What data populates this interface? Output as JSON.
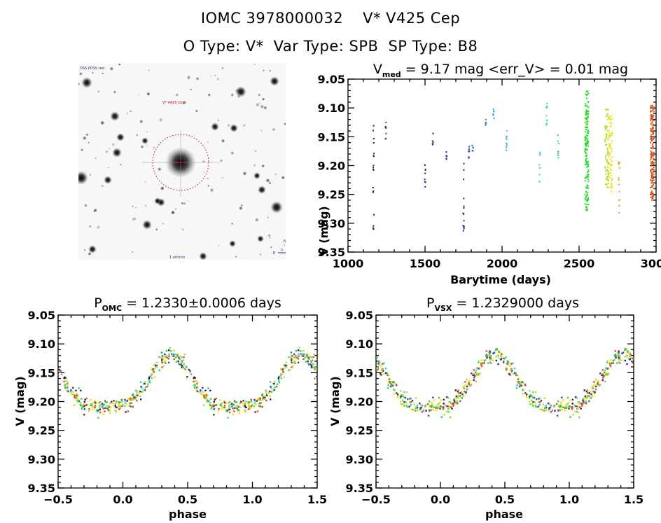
{
  "header": {
    "object_id": "IOMC 3978000032",
    "object_name": "V* V425 Cep",
    "o_type": "O Type: V*",
    "var_type": "Var Type: SPB",
    "sp_type": "SP Type: B8"
  },
  "sky_image": {
    "label_top_left": "DSS POSS red",
    "target_label": "V* V425 Cep",
    "scale_label": "1 arcmin",
    "compass": [
      "N",
      "E"
    ],
    "marker_color": "#cc0000"
  },
  "chart_data": [
    {
      "id": "lightcurve",
      "type": "scatter",
      "title_main": "V",
      "title_sub": "med",
      "title_rest": " = 9.17 mag <err_V> = 0.01 mag",
      "xlabel": "Barytime (days)",
      "ylabel": "V (mag)",
      "xlim": [
        1000,
        3000
      ],
      "ylim": [
        9.35,
        9.05
      ],
      "xticks": [
        "1000",
        "1500",
        "2000",
        "2500",
        "3000"
      ],
      "yticks": [
        "9.05",
        "9.10",
        "9.15",
        "9.20",
        "9.25",
        "9.30",
        "9.35"
      ],
      "clusters": [
        {
          "t": 1165,
          "vmin": 9.12,
          "vmax": 9.315,
          "n": 18,
          "color": "#3a0a5a"
        },
        {
          "t": 1245,
          "vmin": 9.125,
          "vmax": 9.155,
          "n": 8,
          "color": "#5a2070"
        },
        {
          "t": 1500,
          "vmin": 9.195,
          "vmax": 9.24,
          "n": 9,
          "color": "#4a1a7a"
        },
        {
          "t": 1550,
          "vmin": 9.14,
          "vmax": 9.165,
          "n": 6,
          "color": "#5a2070"
        },
        {
          "t": 1640,
          "vmin": 9.175,
          "vmax": 9.19,
          "n": 5,
          "color": "#2a2090"
        },
        {
          "t": 1750,
          "vmin": 9.195,
          "vmax": 9.315,
          "n": 14,
          "color": "#1a1aa0"
        },
        {
          "t": 1785,
          "vmin": 9.165,
          "vmax": 9.195,
          "n": 8,
          "color": "#2040b0"
        },
        {
          "t": 1810,
          "vmin": 9.16,
          "vmax": 9.175,
          "n": 6,
          "color": "#2060c0"
        },
        {
          "t": 1895,
          "vmin": 9.12,
          "vmax": 9.13,
          "n": 5,
          "color": "#2a80c8"
        },
        {
          "t": 1945,
          "vmin": 9.095,
          "vmax": 9.125,
          "n": 6,
          "color": "#30a0d0"
        },
        {
          "t": 2030,
          "vmin": 9.135,
          "vmax": 9.21,
          "n": 12,
          "color": "#40c0d8"
        },
        {
          "t": 2245,
          "vmin": 9.17,
          "vmax": 9.23,
          "n": 10,
          "color": "#40d0d0"
        },
        {
          "t": 2290,
          "vmin": 9.08,
          "vmax": 9.14,
          "n": 10,
          "color": "#40d8c0"
        },
        {
          "t": 2365,
          "vmin": 9.145,
          "vmax": 9.19,
          "n": 10,
          "color": "#30d890"
        },
        {
          "t": 2550,
          "vmin": 9.07,
          "vmax": 9.28,
          "n": 160,
          "color": "#20e020"
        },
        {
          "t": 2680,
          "vmin": 9.1,
          "vmax": 9.24,
          "n": 70,
          "color": "#b0e020"
        },
        {
          "t": 2705,
          "vmin": 9.11,
          "vmax": 9.245,
          "n": 60,
          "color": "#f0e000"
        },
        {
          "t": 2760,
          "vmin": 9.19,
          "vmax": 9.285,
          "n": 14,
          "color": "#e0a030"
        },
        {
          "t": 2975,
          "vmin": 9.095,
          "vmax": 9.26,
          "n": 160,
          "color": "#e05010"
        }
      ]
    },
    {
      "id": "phase_omc",
      "type": "scatter",
      "title_main": "P",
      "title_sub": "OMC",
      "title_rest": " = 1.2330±0.0006 days",
      "period_days": 1.233,
      "period_err_days": 0.0006,
      "xlabel": "phase",
      "ylabel": "V (mag)",
      "xlim": [
        -0.5,
        1.5
      ],
      "ylim": [
        9.35,
        9.05
      ],
      "xticks": [
        "−0.5",
        "0.0",
        "0.5",
        "1.0",
        "1.5"
      ],
      "yticks": [
        "9.05",
        "9.10",
        "9.15",
        "9.20",
        "9.25",
        "9.30",
        "9.35"
      ],
      "curve_mean": 9.175,
      "curve_amplitude": 0.05,
      "phase_of_minimum": 0.85,
      "phase_of_maximum": 0.37
    },
    {
      "id": "phase_vsx",
      "type": "scatter",
      "title_main": "P",
      "title_sub": "VSX",
      "title_rest": " = 1.2329000 days",
      "period_days": 1.2329,
      "xlabel": "phase",
      "ylabel": "V (mag)",
      "xlim": [
        -0.5,
        1.5
      ],
      "ylim": [
        9.35,
        9.05
      ],
      "xticks": [
        "−0.5",
        "0.0",
        "0.5",
        "1.0",
        "1.5"
      ],
      "yticks": [
        "9.05",
        "9.10",
        "9.15",
        "9.20",
        "9.25",
        "9.30",
        "9.35"
      ],
      "curve_mean": 9.175,
      "curve_amplitude": 0.05,
      "phase_of_minimum": 0.92,
      "phase_of_maximum": 0.42
    }
  ]
}
